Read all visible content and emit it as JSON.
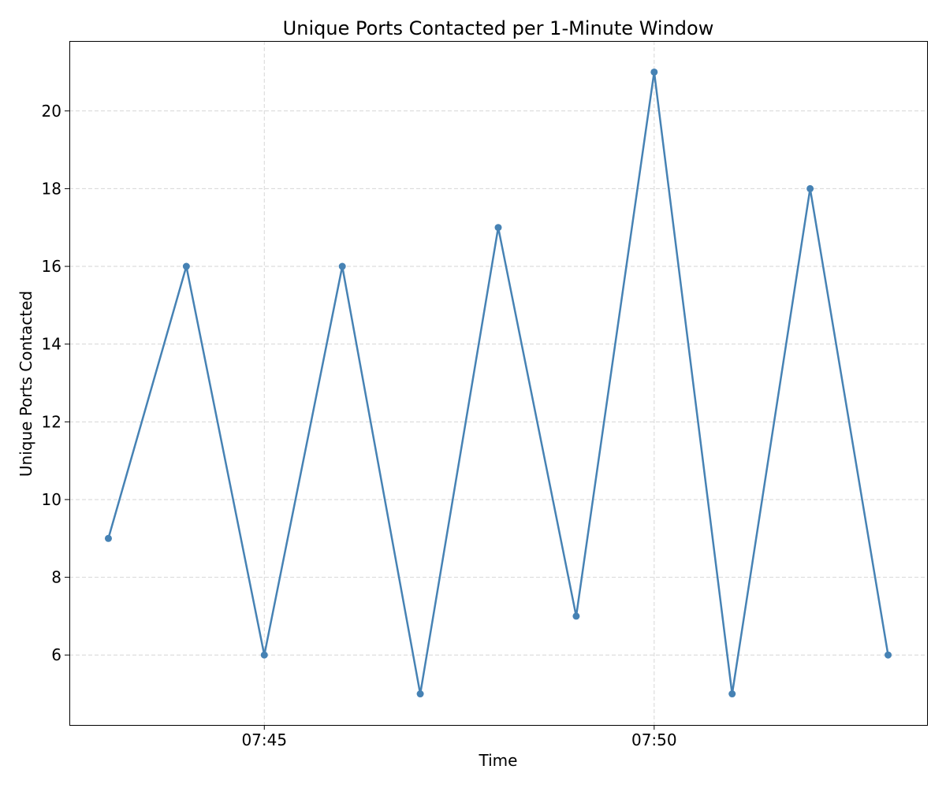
{
  "chart_data": {
    "type": "line",
    "title": "Unique Ports Contacted per 1-Minute Window",
    "xlabel": "Time",
    "ylabel": "Unique Ports Contacted",
    "x": [
      "07:43",
      "07:44",
      "07:45",
      "07:46",
      "07:47",
      "07:48",
      "07:49",
      "07:50",
      "07:51",
      "07:52",
      "07:53"
    ],
    "x_ticks": [
      "07:45",
      "07:50"
    ],
    "y_ticks": [
      6,
      8,
      10,
      12,
      14,
      16,
      18,
      20
    ],
    "xlim": [
      "07:42:30",
      "07:53:30"
    ],
    "ylim": [
      4.2,
      21.8
    ],
    "grid": true,
    "series": [
      {
        "color": "#4682b4",
        "values": [
          9,
          16,
          6,
          16,
          5,
          17,
          7,
          21,
          5,
          18,
          6
        ]
      }
    ]
  }
}
